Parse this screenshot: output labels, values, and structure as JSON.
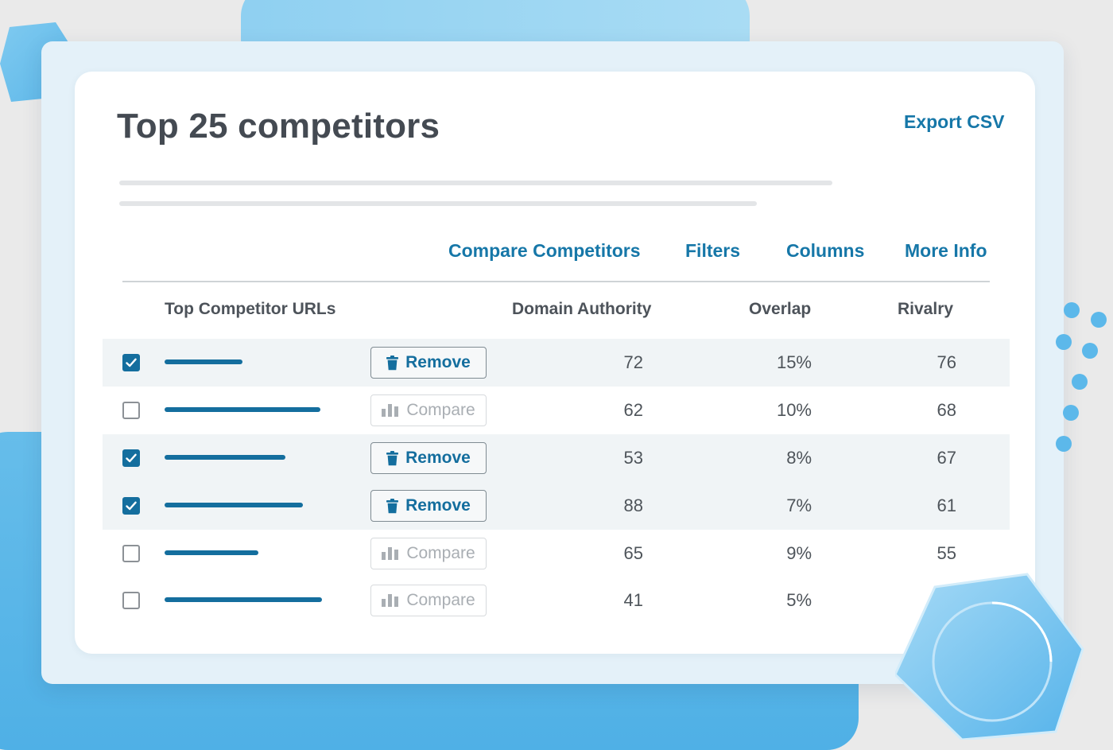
{
  "page": {
    "title": "Top 25 competitors",
    "export_label": "Export CSV"
  },
  "toolbar": {
    "compare_label": "Compare Competitors",
    "filters_label": "Filters",
    "columns_label": "Columns",
    "more_info_label": "More Info"
  },
  "table": {
    "headers": {
      "urls": "Top Competitor URLs",
      "domain_authority": "Domain Authority",
      "overlap": "Overlap",
      "rivalry": "Rivalry"
    },
    "rows": [
      {
        "checked": true,
        "action": "Remove",
        "domain_authority": "72",
        "overlap": "15%",
        "rivalry": "76"
      },
      {
        "checked": false,
        "action": "Compare",
        "domain_authority": "62",
        "overlap": "10%",
        "rivalry": "68"
      },
      {
        "checked": true,
        "action": "Remove",
        "domain_authority": "53",
        "overlap": "8%",
        "rivalry": "67"
      },
      {
        "checked": true,
        "action": "Remove",
        "domain_authority": "88",
        "overlap": "7%",
        "rivalry": "61"
      },
      {
        "checked": false,
        "action": "Compare",
        "domain_authority": "65",
        "overlap": "9%",
        "rivalry": "55"
      },
      {
        "checked": false,
        "action": "Compare",
        "domain_authority": "41",
        "overlap": "5%",
        "rivalry": ""
      }
    ]
  },
  "icons": {
    "remove": "trash-icon",
    "compare": "bar-chart-icon",
    "checked": "check-icon"
  },
  "colors": {
    "accent": "#1677a8",
    "checkbox_fill": "#146e9e",
    "selected_row_bg": "#f0f4f6",
    "background_blue": "#5db7e9"
  }
}
